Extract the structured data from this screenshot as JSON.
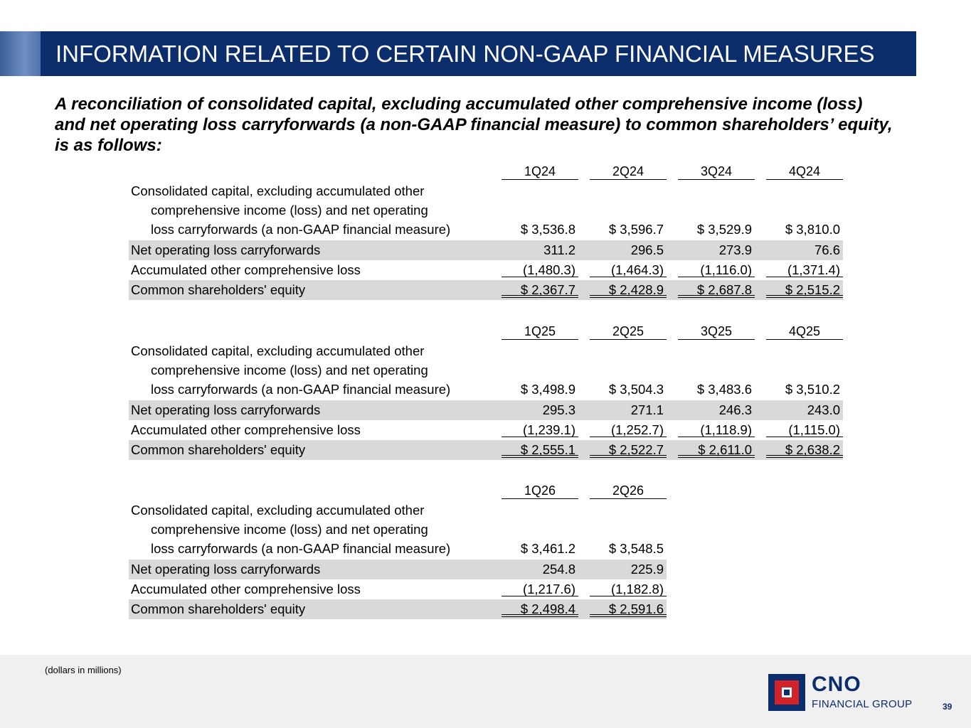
{
  "title": "INFORMATION RELATED TO CERTAIN NON-GAAP FINANCIAL MEASURES",
  "intro": "A reconciliation of consolidated capital, excluding accumulated other comprehensive income (loss) and net operating loss carryforwards (a non-GAAP financial measure) to common shareholders’ equity, is as follows:",
  "labels": {
    "capital_line1": "Consolidated capital, excluding accumulated other",
    "capital_line2": "comprehensive income (loss) and net operating",
    "capital_line3": "loss carryforwards (a non-GAAP financial measure)",
    "nol": "Net operating loss carryforwards",
    "aoci": "Accumulated other comprehensive loss",
    "equity": "Common shareholders' equity"
  },
  "blocks": [
    {
      "headers": [
        "1Q24",
        "2Q24",
        "3Q24",
        "4Q24"
      ],
      "capital": [
        "$ 3,536.8",
        "$ 3,596.7",
        "$ 3,529.9",
        "$ 3,810.0"
      ],
      "nol": [
        "311.2",
        "296.5",
        "273.9",
        "76.6"
      ],
      "aoci": [
        "(1,480.3)",
        "(1,464.3)",
        "(1,116.0)",
        "(1,371.4)"
      ],
      "equity": [
        "$ 2,367.7",
        "$ 2,428.9",
        "$ 2,687.8",
        "$ 2,515.2"
      ]
    },
    {
      "headers": [
        "1Q25",
        "2Q25",
        "3Q25",
        "4Q25"
      ],
      "capital": [
        "$ 3,498.9",
        "$ 3,504.3",
        "$ 3,483.6",
        "$ 3,510.2"
      ],
      "nol": [
        "295.3",
        "271.1",
        "246.3",
        "243.0"
      ],
      "aoci": [
        "(1,239.1)",
        "(1,252.7)",
        "(1,118.9)",
        "(1,115.0)"
      ],
      "equity": [
        "$ 2,555.1",
        "$ 2,522.7",
        "$ 2,611.0",
        "$ 2,638.2"
      ]
    },
    {
      "headers": [
        "1Q26",
        "2Q26"
      ],
      "capital": [
        "$ 3,461.2",
        "$ 3,548.5"
      ],
      "nol": [
        "254.8",
        "225.9"
      ],
      "aoci": [
        "(1,217.6)",
        "(1,182.8)"
      ],
      "equity": [
        "$ 2,498.4",
        "$ 2,591.6"
      ]
    }
  ],
  "footnote": "(dollars in millions)",
  "logo": {
    "name": "CNO",
    "subtitle": "FINANCIAL GROUP"
  },
  "page_number": "39",
  "colors": {
    "title_bar": "#0c2d6b",
    "row_shade": "#d9d9d9",
    "logo_red": "#d2232a"
  }
}
